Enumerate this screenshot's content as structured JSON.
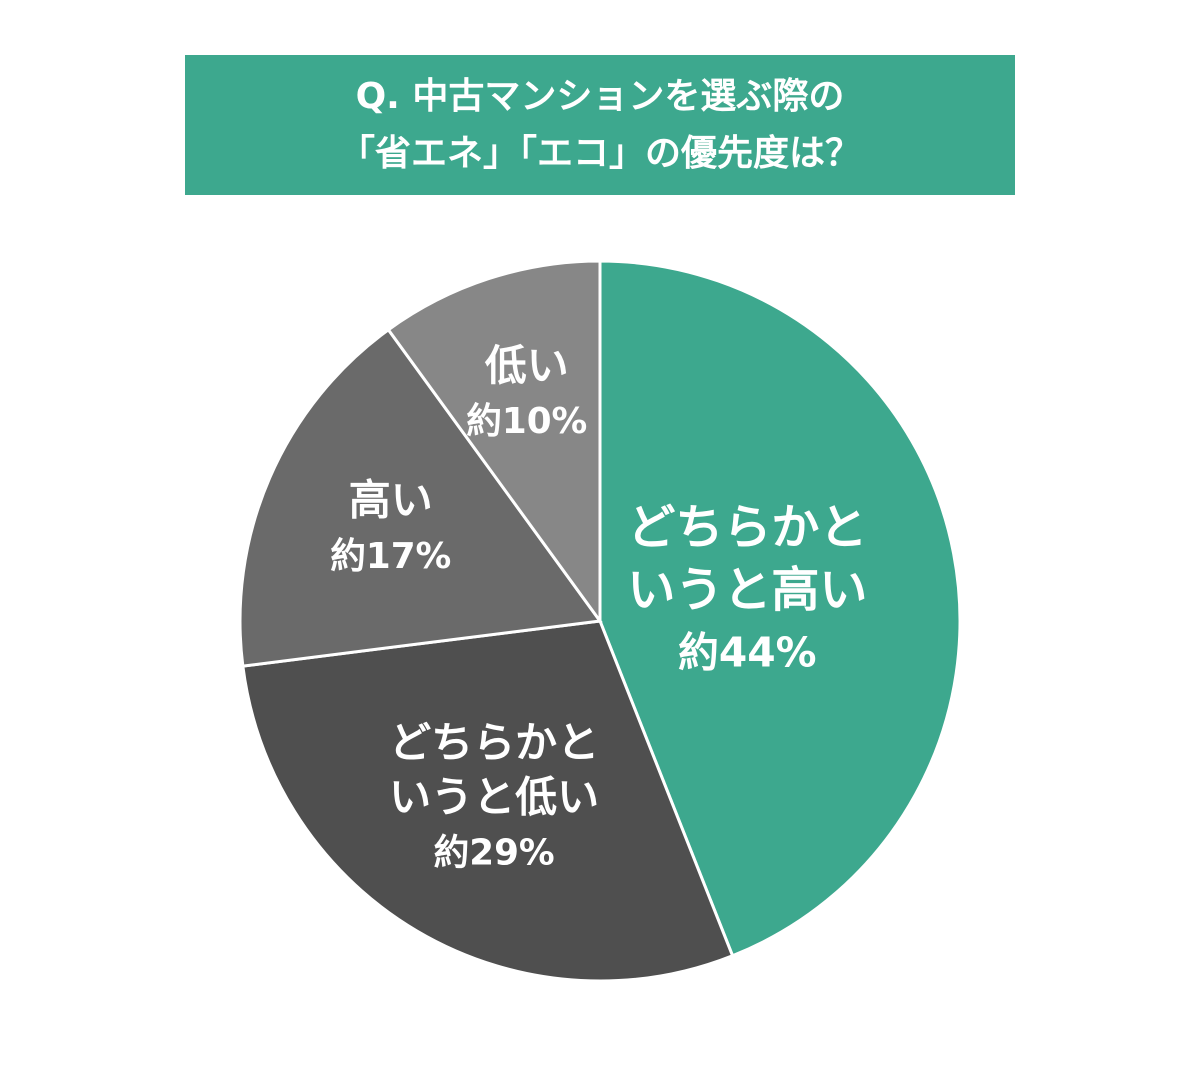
{
  "chart_data": {
    "type": "pie",
    "title": [
      "Q. 中古マンションを選ぶ際の",
      "「省エネ」「エコ」の優先度は？"
    ],
    "categories": [
      [
        "どちらかと",
        "いうと高い"
      ],
      [
        "どちらかと",
        "いうと低い"
      ],
      [
        "高い"
      ],
      [
        "低い"
      ]
    ],
    "values": [
      44,
      29,
      17,
      10
    ],
    "value_labels": [
      "約44%",
      "約29%",
      "約17%",
      "約10%"
    ],
    "colors": [
      "#3da88e",
      "#4f4f4f",
      "#6a6a6a",
      "#878787"
    ],
    "title_color": "#3da88e"
  }
}
